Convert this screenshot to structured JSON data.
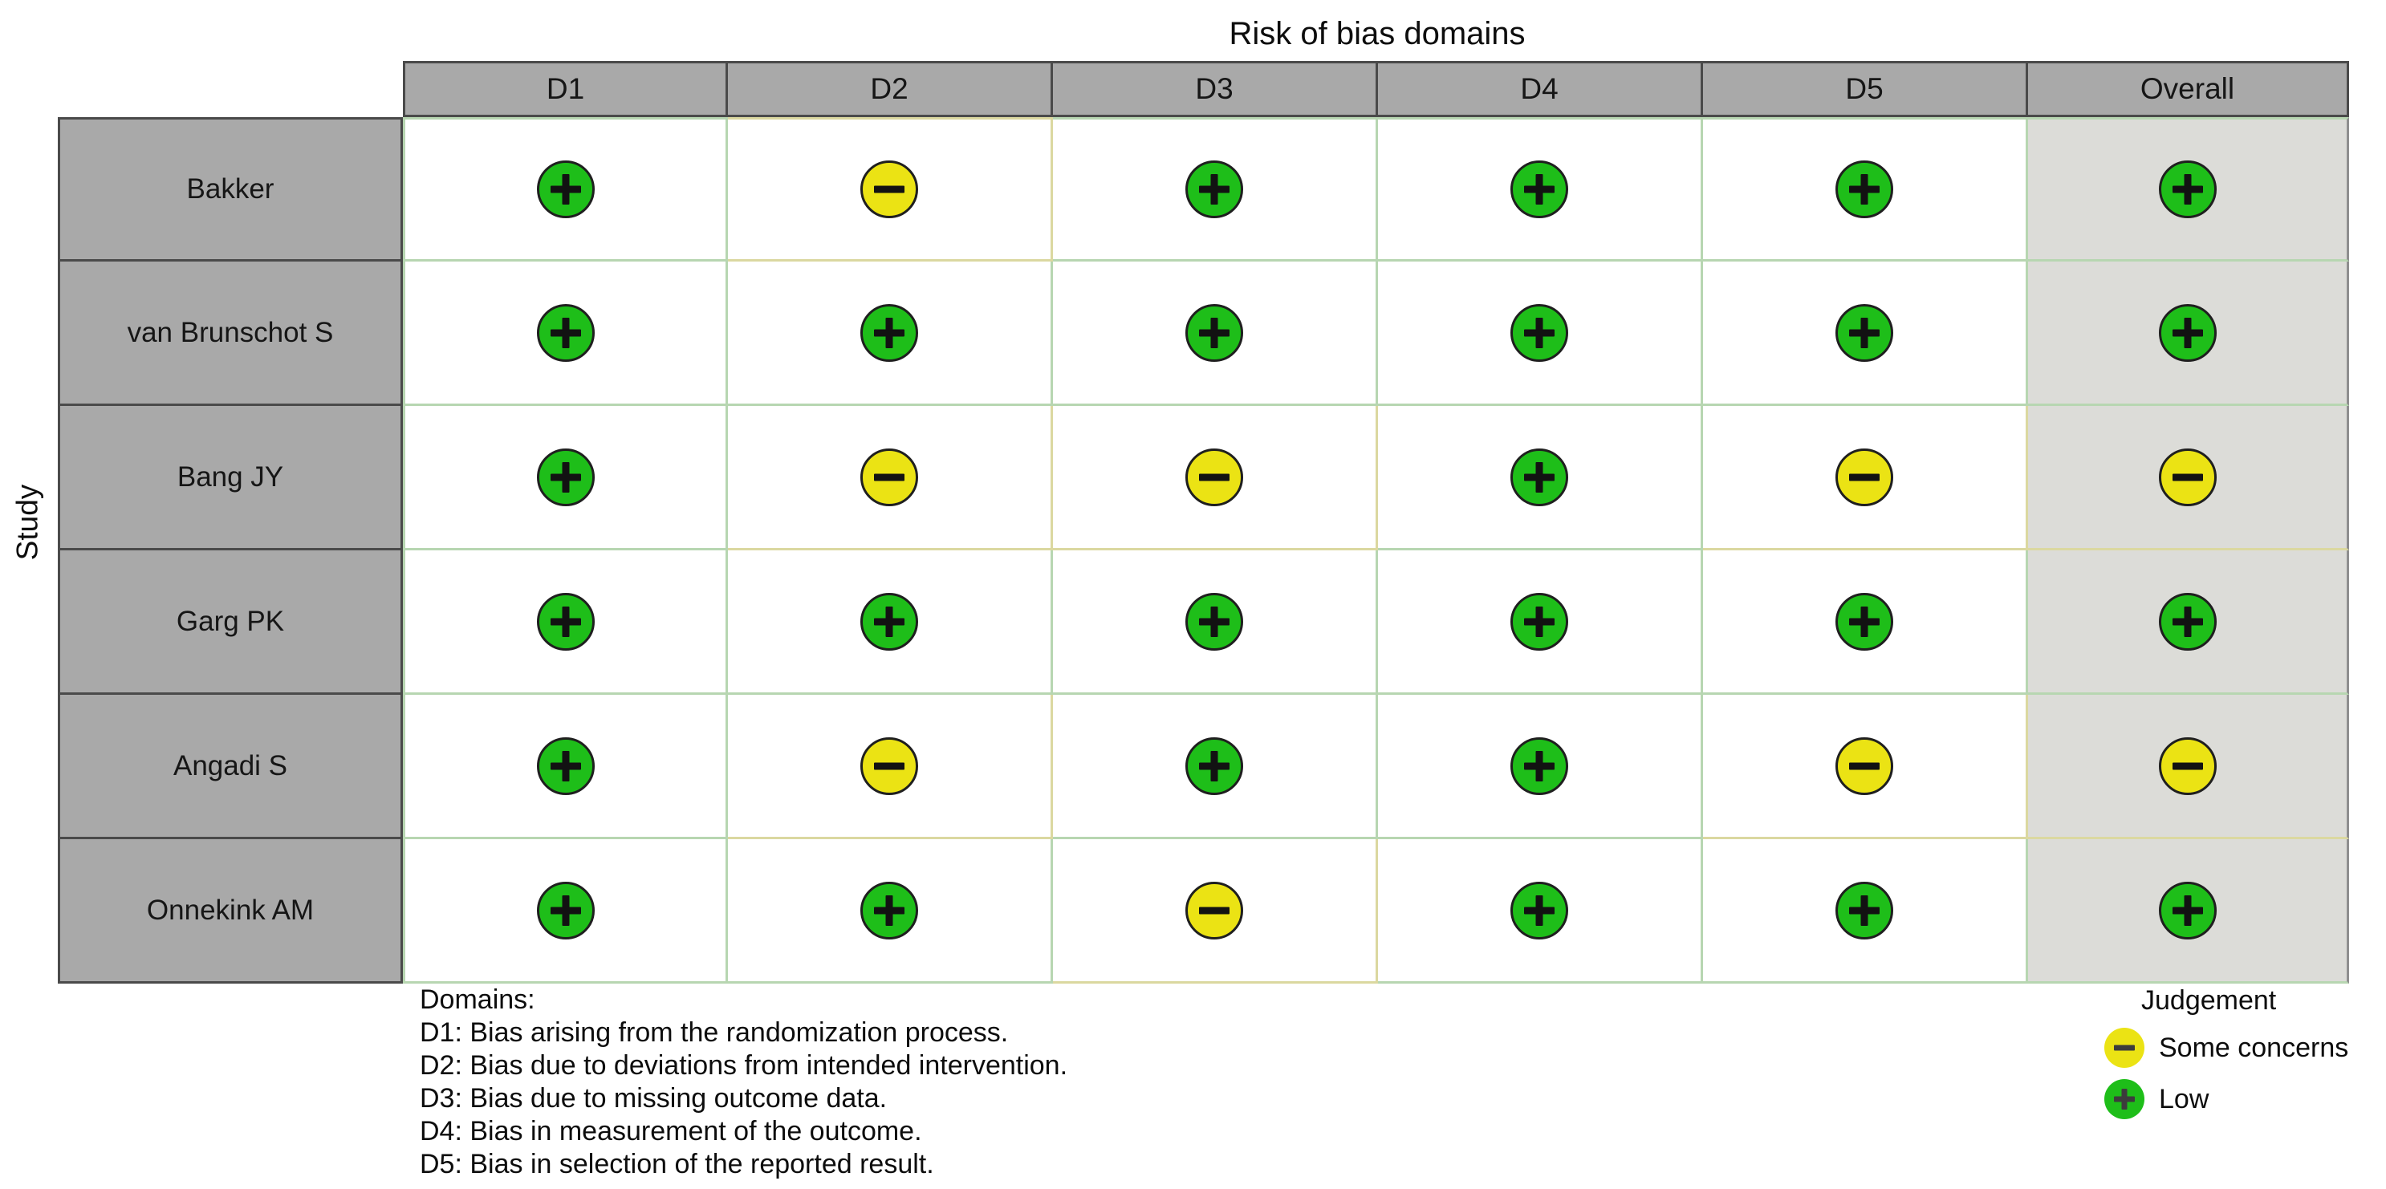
{
  "colors": {
    "low": "#1ebe19",
    "some": "#ebe314",
    "header_bg": "#a9a9a9",
    "header_border": "#4a4a4a",
    "overall_cell_bg": "#dcdcd8",
    "low_cell_border": "#b7d6b1",
    "some_cell_border": "#dbd8a0"
  },
  "chart_data": {
    "type": "table",
    "title": "Risk of bias domains",
    "row_axis_label": "Study",
    "columns": [
      "D1",
      "D2",
      "D3",
      "D4",
      "D5",
      "Overall"
    ],
    "studies": [
      "Bakker",
      "van Brunschot S",
      "Bang JY",
      "Garg PK",
      "Angadi S",
      "Onnekink AM"
    ],
    "judgements": [
      [
        "low",
        "some",
        "low",
        "low",
        "low",
        "low"
      ],
      [
        "low",
        "low",
        "low",
        "low",
        "low",
        "low"
      ],
      [
        "low",
        "some",
        "some",
        "low",
        "some",
        "some"
      ],
      [
        "low",
        "low",
        "low",
        "low",
        "low",
        "low"
      ],
      [
        "low",
        "some",
        "low",
        "low",
        "some",
        "some"
      ],
      [
        "low",
        "low",
        "some",
        "low",
        "low",
        "low"
      ]
    ],
    "legend": {
      "title": "Judgement",
      "entries": [
        {
          "judgement": "some",
          "symbol": "-",
          "label": "Some concerns"
        },
        {
          "judgement": "low",
          "symbol": "+",
          "label": "Low"
        }
      ]
    },
    "footnote": {
      "heading": "Domains:",
      "items": [
        "D1: Bias arising from the randomization process.",
        "D2: Bias due to deviations from intended intervention.",
        "D3: Bias due to missing outcome data.",
        "D4: Bias in measurement of the outcome.",
        "D5: Bias in selection of the reported result."
      ]
    }
  }
}
